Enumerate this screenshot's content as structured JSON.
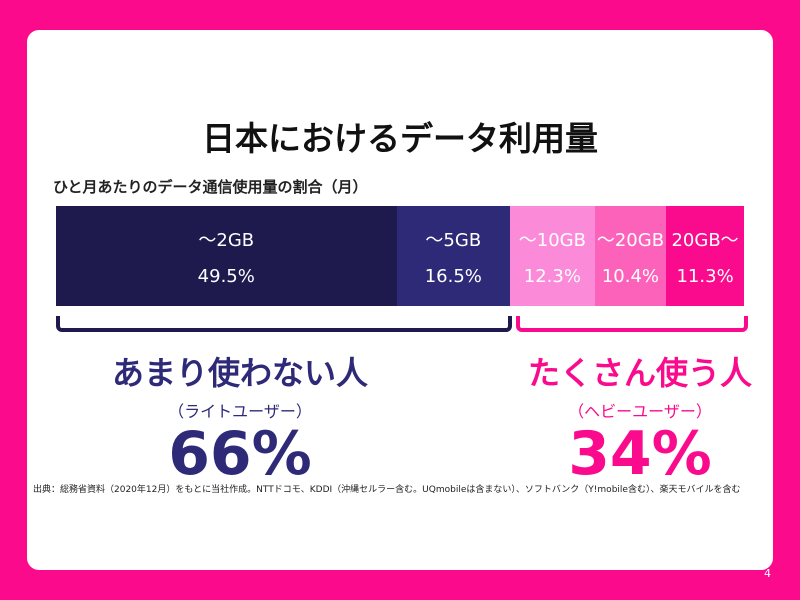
{
  "title": "日本におけるデータ利用量",
  "chart_data": {
    "type": "bar",
    "title": "ひと月あたりのデータ通信使用量の割合（月）",
    "categories": [
      "～2GB",
      "～5GB",
      "～10GB",
      "～20GB",
      "20GB～"
    ],
    "values": [
      49.5,
      16.5,
      12.3,
      10.4,
      11.3
    ],
    "value_labels": [
      "49.5%",
      "16.5%",
      "12.3%",
      "10.4%",
      "11.3%"
    ],
    "colors": [
      "#1e1a4d",
      "#2e2a78",
      "#fb8ad8",
      "#fd62bb",
      "#fa0a8c"
    ]
  },
  "groups": [
    {
      "heading": "あまり使わない人",
      "sub": "（ライトユーザー）",
      "percent": "66%",
      "color": "#2e2a78"
    },
    {
      "heading": "たくさん使う人",
      "sub": "（ヘビーユーザー）",
      "percent": "34%",
      "color": "#fa0a8c"
    }
  ],
  "source": "出典：総務省資料（2020年12月）をもとに当社作成。NTTドコモ、KDDI（沖縄セルラー含む。UQmobileは含まない）、ソフトバンク（Y!mobile含む）、楽天モバイルを含む",
  "page": "4"
}
